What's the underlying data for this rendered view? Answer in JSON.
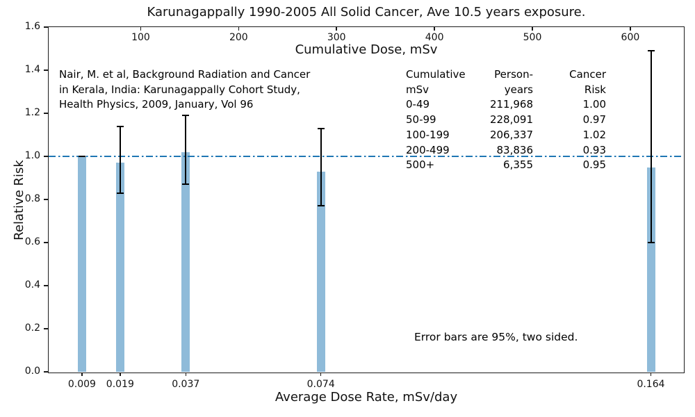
{
  "chart_data": {
    "type": "bar",
    "title": "Karunagappally 1990-2005 All Solid Cancer, Ave 10.5 years exposure.",
    "top_axis": {
      "label": "Cumulative Dose, mSv",
      "ticks": [
        100,
        200,
        300,
        400,
        500,
        600
      ],
      "range": [
        6,
        654
      ]
    },
    "x_axis": {
      "label": "Average Dose Rate, mSv/day",
      "tick_labels": [
        "0.009",
        "0.019",
        "0.037",
        "0.074",
        "0.164"
      ]
    },
    "y_axis": {
      "label": "Relative Risk",
      "ticks": [
        "0.0",
        "0.2",
        "0.4",
        "0.6",
        "0.8",
        "1.0",
        "1.2",
        "1.4",
        "1.6"
      ],
      "range": [
        0,
        1.6
      ]
    },
    "reference_line": {
      "y": 1.0,
      "style": "dashdot",
      "color": "#1f77b4"
    },
    "bars": [
      {
        "dose_rate": "0.009",
        "cumulative_dose": 40,
        "relative_risk": 1.0,
        "ci_low": 1.0,
        "ci_high": 1.0
      },
      {
        "dose_rate": "0.019",
        "cumulative_dose": 79,
        "relative_risk": 0.97,
        "ci_low": 0.83,
        "ci_high": 1.14
      },
      {
        "dose_rate": "0.037",
        "cumulative_dose": 146,
        "relative_risk": 1.02,
        "ci_low": 0.87,
        "ci_high": 1.19
      },
      {
        "dose_rate": "0.074",
        "cumulative_dose": 284,
        "relative_risk": 0.93,
        "ci_low": 0.77,
        "ci_high": 1.13
      },
      {
        "dose_rate": "0.164",
        "cumulative_dose": 621,
        "relative_risk": 0.95,
        "ci_low": 0.6,
        "ci_high": 1.49
      }
    ],
    "bar_color": "#8fbbd9",
    "error_color": "#000000",
    "legend": "none",
    "grid": false
  },
  "annotations": {
    "citation_lines": [
      "Nair, M. et al, Background Radiation and Cancer",
      "in Kerala, India: Karunagappally Cohort Study,",
      "Health Physics, 2009, January, Vol 96"
    ],
    "error_note": "Error bars are 95%, two sided."
  },
  "table": {
    "header_rows": [
      [
        "Cumulative",
        "Person-",
        "Cancer"
      ],
      [
        "mSv",
        "years",
        "Risk"
      ]
    ],
    "rows": [
      [
        "0-49",
        "211,968",
        "1.00"
      ],
      [
        "50-99",
        "228,091",
        "0.97"
      ],
      [
        "100-199",
        "206,337",
        "1.02"
      ],
      [
        "200-499",
        "83,836",
        "0.93"
      ],
      [
        "500+",
        "6,355",
        "0.95"
      ]
    ]
  }
}
